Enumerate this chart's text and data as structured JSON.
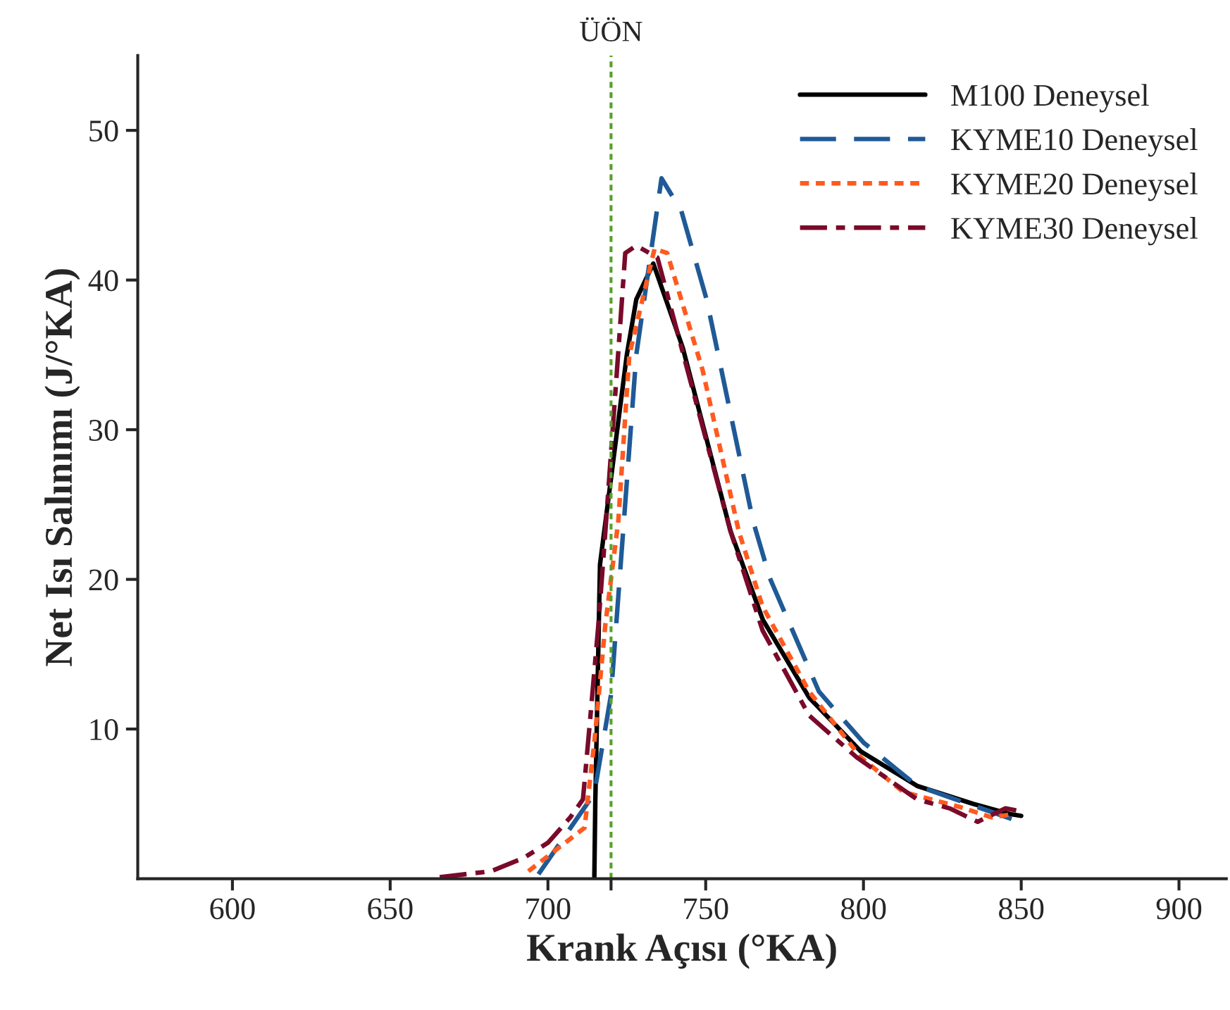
{
  "chart_data": {
    "type": "line",
    "xlabel": "Krank Açısı (°KA)",
    "ylabel": "Net Isı Salınımı (J/°KA)",
    "xlim": [
      570,
      915
    ],
    "xticks": [
      600,
      650,
      700,
      {
        "value": 720,
        "label": null
      },
      750,
      800,
      850,
      900
    ],
    "ylim": [
      0,
      55
    ],
    "yticks": [
      10,
      20,
      30,
      40,
      50
    ],
    "grid": false,
    "legend": "top right",
    "ref_lines": [
      {
        "axis": "x",
        "value": 720,
        "label": "ÜÖN",
        "color": "#5aa02c",
        "line_style": "dotted"
      }
    ],
    "series": [
      {
        "name": "M100 Deneysel",
        "color": "#000000",
        "line_style": "solid",
        "x": [
          714.7,
          715,
          716.5,
          725,
          728,
          733.4,
          742.7,
          757.9,
          768.1,
          782.8,
          799.2,
          817,
          834.8,
          846.9,
          850
        ],
        "values": [
          0,
          5,
          21,
          35,
          38.7,
          41.1,
          35.5,
          23.2,
          17.3,
          12.1,
          8.5,
          6.2,
          5.0,
          4.3,
          4.2
        ]
      },
      {
        "name": "KYME10 Deneysel",
        "color": "#1f5a96",
        "line_style": "dashed",
        "x": [
          697,
          714.7,
          720,
          722.7,
          728,
          736,
          742.3,
          750.3,
          765,
          770.3,
          785.9,
          800,
          817,
          848.2
        ],
        "values": [
          0.3,
          5.7,
          12.3,
          20,
          35,
          46.8,
          44.6,
          38.7,
          23.9,
          20.1,
          12.5,
          9.1,
          6.2,
          3.9
        ]
      },
      {
        "name": "KYME20 Deneysel",
        "color": "#ff5a1f",
        "line_style": "dotted",
        "x": [
          693.8,
          711.6,
          714.7,
          718.2,
          722.3,
          725.8,
          733.8,
          737.8,
          749,
          760.5,
          768,
          782.8,
          799.2,
          812.6,
          830.4,
          840.6,
          846.9
        ],
        "values": [
          0.5,
          3.4,
          9.1,
          17,
          23.9,
          35,
          42.1,
          41.8,
          34,
          23.2,
          18.2,
          12.5,
          8.1,
          5.8,
          4.8,
          4.1,
          4.3
        ]
      },
      {
        "name": "KYME30 Deneysel",
        "color": "#7a0a2a",
        "line_style": "dashdot",
        "x": [
          665.7,
          682,
          692.4,
          700,
          707.1,
          711.1,
          713.4,
          716,
          718.2,
          722.3,
          724.5,
          728,
          734.7,
          757.9,
          768,
          782.8,
          797.9,
          817,
          827.3,
          836.2,
          845,
          850
        ],
        "values": [
          0.1,
          0.5,
          1.4,
          2.4,
          4.1,
          5.3,
          10.7,
          17,
          23.2,
          35.2,
          41.8,
          42.3,
          41.5,
          23.2,
          16.6,
          10.9,
          8.1,
          5.3,
          4.7,
          3.8,
          4.7,
          4.5
        ]
      }
    ]
  }
}
